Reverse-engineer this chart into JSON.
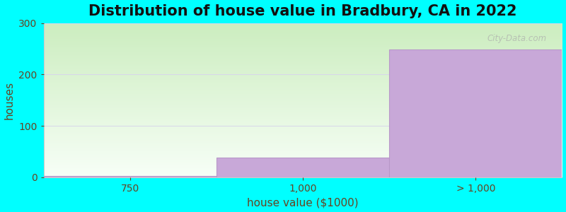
{
  "title": "Distribution of house value in Bradbury, CA in 2022",
  "xlabel": "house value ($1000)",
  "ylabel": "houses",
  "categories": [
    "750",
    "1,000",
    "> 1,000"
  ],
  "values": [
    2,
    38,
    248
  ],
  "bar_color": "#c8a8d8",
  "bar_edge_color": "#b898c8",
  "background_outer": "#00ffff",
  "grad_color_top_left": "#cce8c0",
  "grad_color_bottom_right": "#f8fff8",
  "yticks": [
    0,
    100,
    200,
    300
  ],
  "ylim": [
    0,
    300
  ],
  "title_fontsize": 15,
  "label_fontsize": 11,
  "tick_fontsize": 10,
  "title_color": "#111111",
  "axis_label_color": "#664422",
  "tick_color": "#664422",
  "watermark_text": "City-Data.com",
  "grid_color": "#d8d8e8",
  "figsize": [
    8.0,
    3.0
  ],
  "dpi": 100
}
